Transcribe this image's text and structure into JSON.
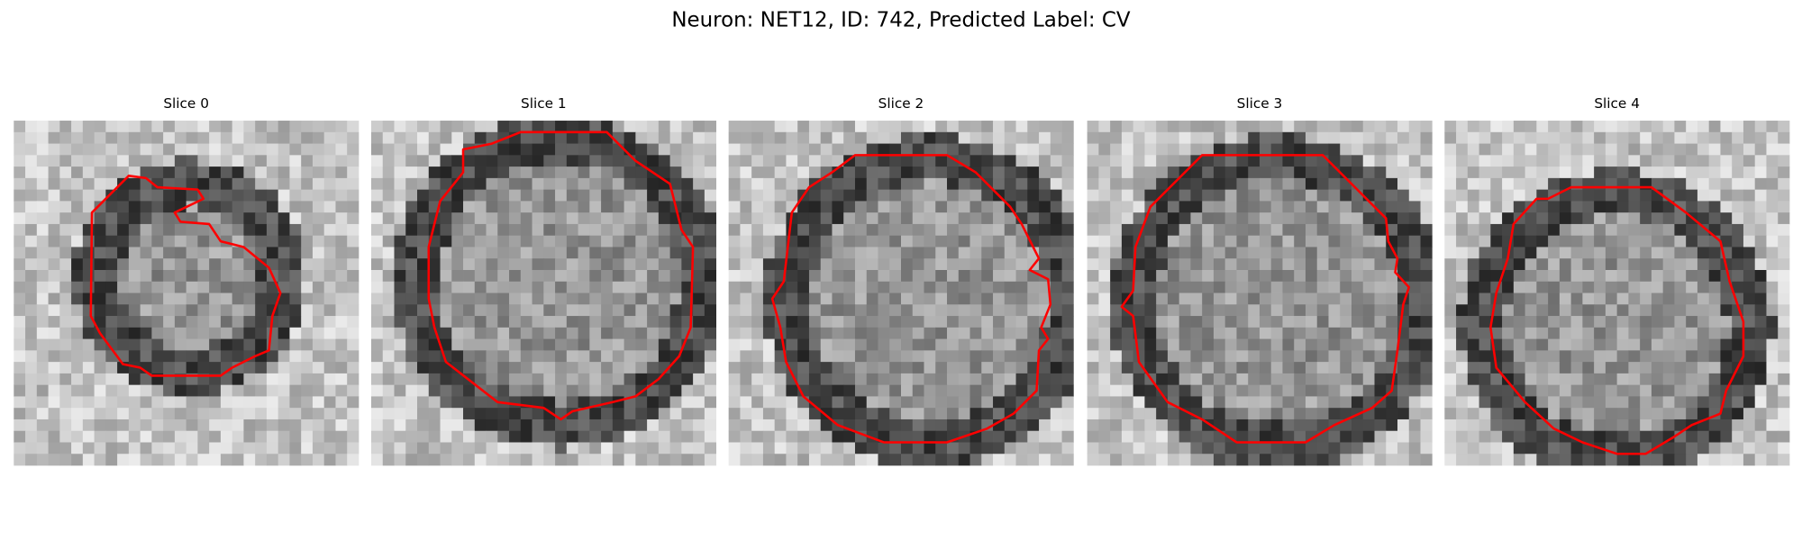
{
  "title": "Neuron: NET12, ID: 742, Predicted Label: CV",
  "panels": [
    {
      "title": "Slice 0"
    },
    {
      "title": "Slice 1"
    },
    {
      "title": "Slice 2"
    },
    {
      "title": "Slice 3"
    },
    {
      "title": "Slice 4"
    }
  ]
}
